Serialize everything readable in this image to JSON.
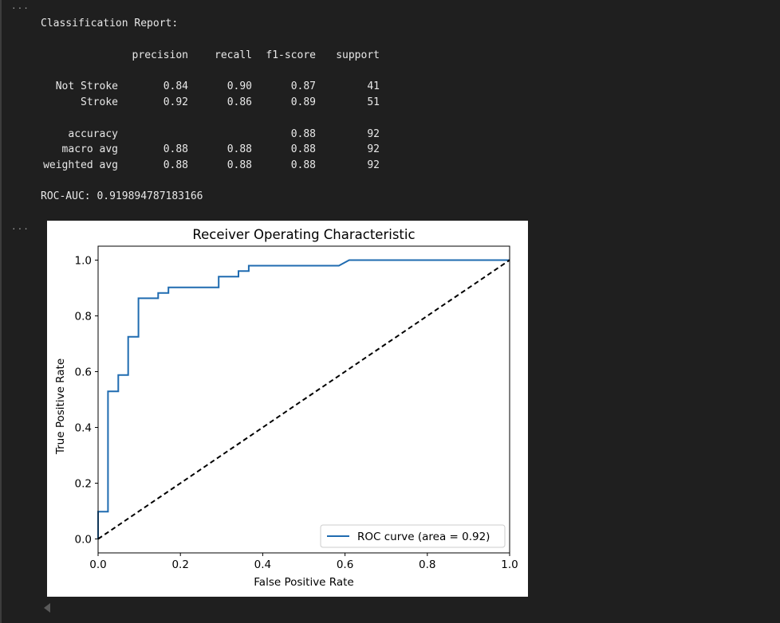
{
  "gutter": {
    "output_marker_1": "...",
    "output_marker_2": "..."
  },
  "report": {
    "title": "Classification Report:",
    "headers": [
      "precision",
      "recall",
      "f1-score",
      "support"
    ],
    "rows": [
      {
        "label": "Not Stroke",
        "precision": "0.84",
        "recall": "0.90",
        "f1": "0.87",
        "support": "41"
      },
      {
        "label": "Stroke",
        "precision": "0.92",
        "recall": "0.86",
        "f1": "0.89",
        "support": "51"
      }
    ],
    "summary_rows": [
      {
        "label": "accuracy",
        "precision": "",
        "recall": "",
        "f1": "0.88",
        "support": "92"
      },
      {
        "label": "macro avg",
        "precision": "0.88",
        "recall": "0.88",
        "f1": "0.88",
        "support": "92"
      },
      {
        "label": "weighted avg",
        "precision": "0.88",
        "recall": "0.88",
        "f1": "0.88",
        "support": "92"
      }
    ],
    "roc_auc_line": "ROC-AUC: 0.919894787183166"
  },
  "colors": {
    "background": "#1f1f1f",
    "text": "#e8e8e8",
    "curve": "#1f6bb0",
    "diagonal": "#000000"
  },
  "chart_data": {
    "type": "line",
    "title": "Receiver Operating Characteristic",
    "xlabel": "False Positive Rate",
    "ylabel": "True Positive Rate",
    "xlim": [
      0.0,
      1.0
    ],
    "ylim": [
      0.0,
      1.0
    ],
    "xticks": [
      "0.0",
      "0.2",
      "0.4",
      "0.6",
      "0.8",
      "1.0"
    ],
    "yticks": [
      "0.0",
      "0.2",
      "0.4",
      "0.6",
      "0.8",
      "1.0"
    ],
    "grid": false,
    "legend_position": "lower-right",
    "series": [
      {
        "name": "ROC curve (area = 0.92)",
        "style": "solid",
        "x": [
          0.0,
          0.0,
          0.024,
          0.024,
          0.049,
          0.049,
          0.073,
          0.073,
          0.098,
          0.098,
          0.146,
          0.146,
          0.171,
          0.171,
          0.293,
          0.293,
          0.341,
          0.341,
          0.366,
          0.366,
          0.585,
          0.61,
          0.61,
          1.0
        ],
        "y": [
          0.0,
          0.098,
          0.098,
          0.529,
          0.529,
          0.588,
          0.588,
          0.725,
          0.725,
          0.863,
          0.863,
          0.882,
          0.882,
          0.902,
          0.902,
          0.941,
          0.941,
          0.961,
          0.961,
          0.98,
          0.98,
          1.0,
          1.0,
          1.0
        ]
      },
      {
        "name": "",
        "style": "dashed",
        "x": [
          0.0,
          1.0
        ],
        "y": [
          0.0,
          1.0
        ]
      }
    ]
  }
}
